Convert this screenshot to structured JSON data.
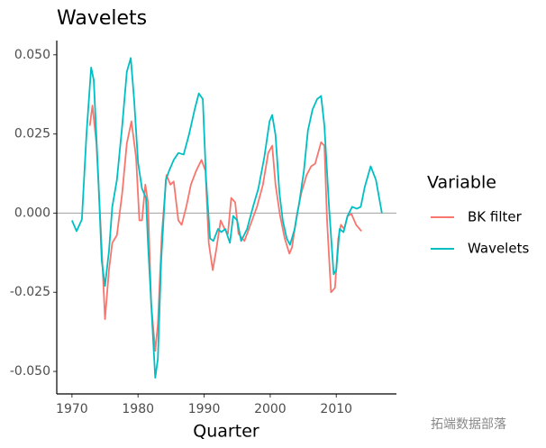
{
  "chart_data": {
    "type": "line",
    "title": "Wavelets",
    "x_label": "Quarter",
    "legend_title": "Variable",
    "legend_position": "right",
    "watermark": "拓端数据部落",
    "xlim": [
      1967.7,
      2019.1
    ],
    "xticks": [
      1970,
      1980,
      1990,
      2000,
      2010
    ],
    "ylim": [
      -0.0571,
      0.0545
    ],
    "yticks": [
      {
        "value": 0.05,
        "label": "0.050"
      },
      0.025,
      {
        "value": 0,
        "label": "0.000"
      },
      -0.025,
      {
        "value": -0.05,
        "label": "-0.050"
      }
    ],
    "hline": 0,
    "series": [
      {
        "name": "BK filter",
        "color": "#F8766D",
        "x": [
          1972.7,
          1973.1,
          1973.7,
          1974.4,
          1975,
          1975.6,
          1976.1,
          1976.8,
          1977.6,
          1978.3,
          1979,
          1979.7,
          1980.2,
          1980.6,
          1981.1,
          1981.5,
          1982,
          1982.6,
          1983,
          1983.6,
          1984.3,
          1984.9,
          1985.4,
          1986.1,
          1986.6,
          1987.3,
          1988,
          1988.8,
          1989.6,
          1990.2,
          1990.7,
          1991.3,
          1991.8,
          1992.5,
          1993.1,
          1993.6,
          1994.1,
          1994.7,
          1995.2,
          1996.1,
          1997,
          1998,
          1998.9,
          1999.7,
          2000.3,
          2000.8,
          2001.5,
          2002.2,
          2002.9,
          2003.3,
          2004,
          2004.7,
          2005.5,
          2006.2,
          2006.8,
          2007.7,
          2008.2,
          2008.6,
          2009.2,
          2009.8,
          2010.3,
          2010.7,
          2011.2,
          2011.7,
          2012.3,
          2013,
          2013.8
        ],
        "values": [
          0.0276,
          0.034,
          0.022,
          -0.0065,
          -0.0335,
          -0.018,
          -0.0094,
          -0.007,
          0.0063,
          0.022,
          0.029,
          0.0176,
          -0.0023,
          -0.0023,
          0.009,
          0.0034,
          -0.029,
          -0.0435,
          -0.035,
          -0.0065,
          0.012,
          0.009,
          0.01,
          -0.0023,
          -0.0037,
          0.002,
          0.009,
          0.0134,
          0.0168,
          0.0134,
          -0.0094,
          -0.018,
          -0.012,
          -0.0023,
          -0.005,
          -0.0065,
          0.0048,
          0.0034,
          -0.0065,
          -0.0088,
          -0.0037,
          0.002,
          0.009,
          0.019,
          0.0213,
          0.009,
          -0.0009,
          -0.008,
          -0.0128,
          -0.0108,
          -0.0009,
          0.0063,
          0.012,
          0.0148,
          0.0156,
          0.0224,
          0.0213,
          -0.0023,
          -0.025,
          -0.0236,
          -0.008,
          -0.0037,
          -0.005,
          -0.0009,
          -0.0003,
          -0.0037,
          -0.0057
        ]
      },
      {
        "name": "Wavelets",
        "color": "#00BFC4",
        "x": [
          1970,
          1970.7,
          1971.5,
          1972.2,
          1972.9,
          1973.3,
          1974,
          1974.5,
          1975,
          1975.6,
          1976.1,
          1976.8,
          1977.6,
          1978.3,
          1978.9,
          1979.4,
          1980,
          1980.6,
          1981.2,
          1981.5,
          1982,
          1982.6,
          1983,
          1983.5,
          1984.2,
          1984.7,
          1985.4,
          1986.1,
          1986.9,
          1987.7,
          1988.6,
          1989.2,
          1989.8,
          1990.3,
          1990.9,
          1991.4,
          1992.1,
          1992.6,
          1993.2,
          1993.9,
          1994.4,
          1995,
          1995.6,
          1996.5,
          1997.4,
          1998.2,
          1999.1,
          1999.9,
          2000.3,
          2000.8,
          2001.4,
          2001.9,
          2002.5,
          2003,
          2003.7,
          2004.4,
          2005.1,
          2005.7,
          2006.4,
          2007.1,
          2007.7,
          2008.2,
          2008.9,
          2009.6,
          2010,
          2010.5,
          2011.1,
          2011.7,
          2012.4,
          2013.1,
          2013.7,
          2014.3,
          2015.2,
          2016,
          2016.9
        ],
        "values": [
          -0.0023,
          -0.0057,
          -0.002,
          0.025,
          0.046,
          0.042,
          0.0105,
          -0.015,
          -0.023,
          -0.012,
          0.002,
          0.0105,
          0.0275,
          0.0446,
          0.049,
          0.036,
          0.016,
          0.0077,
          0.0048,
          -0.0094,
          -0.029,
          -0.052,
          -0.046,
          -0.015,
          0.0105,
          0.0134,
          0.0168,
          0.019,
          0.0185,
          0.0247,
          0.033,
          0.0378,
          0.036,
          0.0105,
          -0.008,
          -0.0088,
          -0.005,
          -0.006,
          -0.005,
          -0.0094,
          -0.0009,
          -0.0023,
          -0.0088,
          -0.005,
          0.002,
          0.0077,
          0.0176,
          0.029,
          0.031,
          0.0247,
          0.0063,
          -0.0023,
          -0.008,
          -0.01,
          -0.005,
          0.0034,
          0.0134,
          0.026,
          0.0327,
          0.036,
          0.037,
          0.0276,
          0.002,
          -0.0193,
          -0.0179,
          -0.005,
          -0.006,
          -0.0009,
          0.002,
          0.0014,
          0.002,
          0.0082,
          0.0148,
          0.0105,
          0
        ]
      }
    ]
  }
}
